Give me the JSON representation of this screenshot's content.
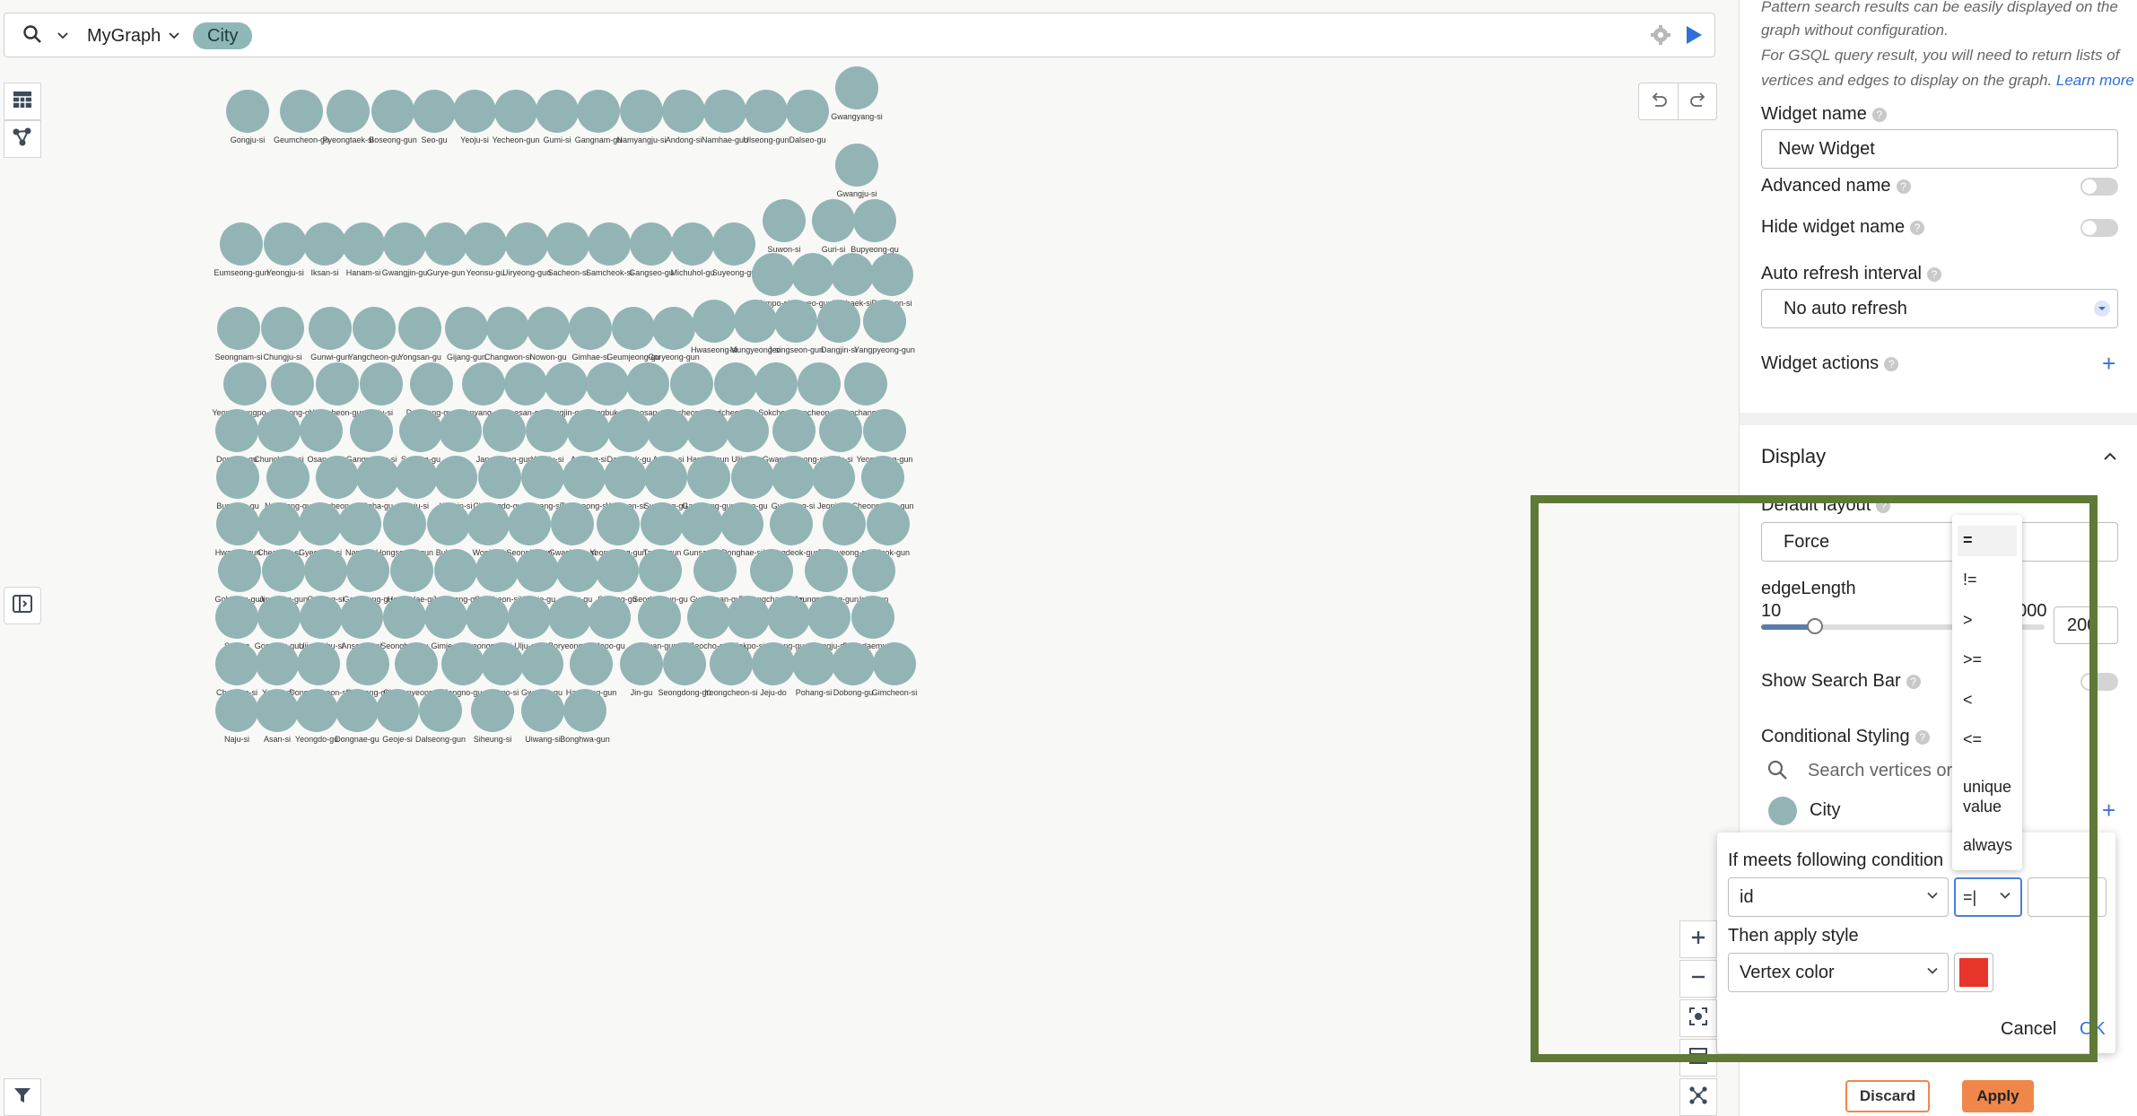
{
  "search": {
    "graph_name": "MyGraph",
    "chip": "City"
  },
  "graph": {
    "node_color": "#92b4b4",
    "nodes": [
      {
        "label": "Gongju-si"
      },
      {
        "label": "Geumcheon-gu"
      },
      {
        "label": "Pyeongtaek-si"
      },
      {
        "label": "Boseong-gun"
      },
      {
        "label": "Seo-gu"
      },
      {
        "label": "Yeoju-si"
      },
      {
        "label": "Yecheon-gun"
      },
      {
        "label": "Gumi-si"
      },
      {
        "label": "Gangnam-gu"
      },
      {
        "label": "Namyangju-si"
      },
      {
        "label": "Andong-si"
      },
      {
        "label": "Namhae-gun"
      },
      {
        "label": "Ulseong-gun"
      },
      {
        "label": "Dalseo-gu"
      },
      {
        "label": "Gwangyang-si"
      },
      {
        "label": "Gwangju-si"
      },
      {
        "label": "Suwon-si"
      },
      {
        "label": "Guri-si"
      },
      {
        "label": "Bupyeong-gu"
      },
      {
        "label": "Eumseong-gun"
      },
      {
        "label": "Yeongju-si"
      },
      {
        "label": "Iksan-si"
      },
      {
        "label": "Hanam-si"
      },
      {
        "label": "Gwangjin-gu"
      },
      {
        "label": "Gurye-gun"
      },
      {
        "label": "Yeonsu-gu"
      },
      {
        "label": "Uiryeong-gun"
      },
      {
        "label": "Sacheon-si"
      },
      {
        "label": "Samcheok-si"
      },
      {
        "label": "Gangseo-gu"
      },
      {
        "label": "Michuhol-gu"
      },
      {
        "label": "Suyeong-gu"
      },
      {
        "label": "Gimpo-si"
      },
      {
        "label": "Buyeo-gun"
      },
      {
        "label": "Taebaek-si"
      },
      {
        "label": "Pocheon-si"
      },
      {
        "label": "Hwaseong-si"
      },
      {
        "label": "Mungyeong-si"
      },
      {
        "label": "Jeongseon-gun"
      },
      {
        "label": "Dangjin-si"
      },
      {
        "label": "Yangpyeong-gun"
      },
      {
        "label": "Seongnam-si"
      },
      {
        "label": "Chungju-si"
      },
      {
        "label": "Gunwi-gun"
      },
      {
        "label": "Yangcheon-gu"
      },
      {
        "label": "Yongsan-gu"
      },
      {
        "label": "Gijang-gun"
      },
      {
        "label": "Changwon-si"
      },
      {
        "label": "Nowon-gu"
      },
      {
        "label": "Gimhae-si"
      },
      {
        "label": "Geumjeong-gu"
      },
      {
        "label": "Goryeong-gun"
      },
      {
        "label": "Yeongdeungpo-gu"
      },
      {
        "label": "Yuseong-gu"
      },
      {
        "label": "Yeoncheon-gun"
      },
      {
        "label": "Jeju-si"
      },
      {
        "label": "Damyang-gun"
      },
      {
        "label": "Danyang-gun"
      },
      {
        "label": "Goesan-gun"
      },
      {
        "label": "Gangjin-gun"
      },
      {
        "label": "Gangbuk-gu"
      },
      {
        "label": "Seosan-si"
      },
      {
        "label": "Sancheong-gun"
      },
      {
        "label": "Icheon-si"
      },
      {
        "label": "Sokcho-si"
      },
      {
        "label": "Hapcheon-gun"
      },
      {
        "label": "Geochang-gun"
      },
      {
        "label": "Dongjak-gu"
      },
      {
        "label": "Chuncheon-si"
      },
      {
        "label": "Osan-si"
      },
      {
        "label": "Gangneung-si"
      },
      {
        "label": "Songpa-gu"
      },
      {
        "label": "etc"
      },
      {
        "label": "Jangheung-gun"
      },
      {
        "label": "Yangju-si"
      },
      {
        "label": "Anyang-si"
      },
      {
        "label": "Daedeok-gu"
      },
      {
        "label": "Ansan-si"
      },
      {
        "label": "Haman-gun"
      },
      {
        "label": "Uljin-gun"
      },
      {
        "label": "Gwangmyeong-si"
      },
      {
        "label": "Paju-si"
      },
      {
        "label": "Yeongyang-gun"
      },
      {
        "label": "Busanjin-gu"
      },
      {
        "label": "Namdong-gu"
      },
      {
        "label": "Bucheon-si"
      },
      {
        "label": "Saha-gu"
      },
      {
        "label": "Jinju-si"
      },
      {
        "label": "Yongin-si"
      },
      {
        "label": "Cheongdo-gun"
      },
      {
        "label": "Miryang-si"
      },
      {
        "label": "Tongyeong-si"
      },
      {
        "label": "Yangsan-si"
      },
      {
        "label": "Suseong-gu"
      },
      {
        "label": "Gapyeong-gun"
      },
      {
        "label": "Guro-gu"
      },
      {
        "label": "Gyeryong-si"
      },
      {
        "label": "Jeonju-si"
      },
      {
        "label": "Cheongsong-gun"
      },
      {
        "label": "Hwasun-gun"
      },
      {
        "label": "Cheongju-si"
      },
      {
        "label": "Gyeongju-si"
      },
      {
        "label": "Nam-gu"
      },
      {
        "label": "Hongseong-gun"
      },
      {
        "label": "Buk-gu"
      },
      {
        "label": "Wonju-si"
      },
      {
        "label": "Seongju-gun"
      },
      {
        "label": "Gwacheon-si"
      },
      {
        "label": "Yeongdong-gun"
      },
      {
        "label": "Taean-gun"
      },
      {
        "label": "Gunsan-si"
      },
      {
        "label": "Donghae-si"
      },
      {
        "label": "Yeongdeok-gun"
      },
      {
        "label": "Eunpyeong-gu"
      },
      {
        "label": "Chilgok-gun"
      },
      {
        "label": "Goheung-gun"
      },
      {
        "label": "Jincheon-gun"
      },
      {
        "label": "Goyang-si"
      },
      {
        "label": "Gangdong-gu"
      },
      {
        "label": "Haeundae-gu"
      },
      {
        "label": "Jungnang-gu"
      },
      {
        "label": "Suncheon-si"
      },
      {
        "label": "Yeonje-gu"
      },
      {
        "label": "Jung-gu"
      },
      {
        "label": "Sasang-gu"
      },
      {
        "label": "Seodaemun-gu"
      },
      {
        "label": "Gwangsan-gu"
      },
      {
        "label": "Pyeongchang-gun"
      },
      {
        "label": "Jeungpyeong-gun"
      },
      {
        "label": "Inje-gun"
      },
      {
        "label": "Sejong"
      },
      {
        "label": "Goseong-gun"
      },
      {
        "label": "Uijeongbu-si"
      },
      {
        "label": "Anseong-si"
      },
      {
        "label": "Seongbuk-gu"
      },
      {
        "label": "Gimje-si"
      },
      {
        "label": "Gyeongsan-si"
      },
      {
        "label": "Ulju-gun"
      },
      {
        "label": "Boryeong-si"
      },
      {
        "label": "Mapo-gu"
      },
      {
        "label": "Muan-gun"
      },
      {
        "label": "Seocho-gu"
      },
      {
        "label": "Mokpo-si"
      },
      {
        "label": "Dong-gu"
      },
      {
        "label": "Sangju-si"
      },
      {
        "label": "Dongdaemun-gu"
      },
      {
        "label": "Cheonan-si"
      },
      {
        "label": "Yeosu-si"
      },
      {
        "label": "Dongducheon-si"
      },
      {
        "label": "Gyeyang-gu"
      },
      {
        "label": "Changnyeong-gun"
      },
      {
        "label": "Jongno-gu"
      },
      {
        "label": "Gunpo-si"
      },
      {
        "label": "Gwanak-gu"
      },
      {
        "label": "Hamyang-gun"
      },
      {
        "label": "Jin-gu"
      },
      {
        "label": "Seongdong-gu"
      },
      {
        "label": "Yeongcheon-si"
      },
      {
        "label": "Jeju-do"
      },
      {
        "label": "Pohang-si"
      },
      {
        "label": "Dobong-gu"
      },
      {
        "label": "Gimcheon-si"
      },
      {
        "label": "Naju-si"
      },
      {
        "label": "Asan-si"
      },
      {
        "label": "Yeongdo-gu"
      },
      {
        "label": "Dongnae-gu"
      },
      {
        "label": "Geoje-si"
      },
      {
        "label": "Dalseong-gun"
      },
      {
        "label": "Siheung-si"
      },
      {
        "label": "Uiwang-si"
      },
      {
        "label": "Bonghwa-gun"
      }
    ]
  },
  "panel": {
    "info_line1": "Pattern search results can be easily displayed on the",
    "info_line2": "graph without configuration.",
    "info_line3": "For GSQL query result, you will need to return lists of",
    "info_line4": "vertices and edges to display on the graph.",
    "learn_more": "Learn more",
    "widget_name_label": "Widget name",
    "widget_name_value": "New Widget",
    "advanced_name_label": "Advanced name",
    "hide_widget_name_label": "Hide widget name",
    "auto_refresh_label": "Auto refresh interval",
    "auto_refresh_value": "No auto refresh",
    "widget_actions_label": "Widget actions",
    "display_title": "Display",
    "default_layout_label": "Default layout",
    "default_layout_value": "Force",
    "edge_length_label": "edgeLength",
    "edge_length_min": "10",
    "edge_length_max": "1000",
    "edge_length_value": "200",
    "slider_level": 0.19,
    "show_search_bar_label": "Show Search Bar",
    "conditional_styling_label": "Conditional Styling",
    "conditional_search_placeholder": "Search vertices or edges",
    "city_label": "City",
    "discard": "Discard",
    "apply": "Apply"
  },
  "popup": {
    "condition_label": "If meets following condition",
    "field_value": "id",
    "operator_value": "=|",
    "apply_style_label": "Then apply style",
    "style_value": "Vertex color",
    "style_color": "#e8352a",
    "cancel": "Cancel",
    "ok": "OK"
  },
  "dropdown": {
    "options": [
      "=",
      "!=",
      ">",
      ">=",
      "<",
      "<=",
      "unique value",
      "always"
    ]
  },
  "colors": {
    "highlight": "#5e7a36",
    "accent": "#3b6fd8",
    "apply_bg": "#f0874a"
  }
}
